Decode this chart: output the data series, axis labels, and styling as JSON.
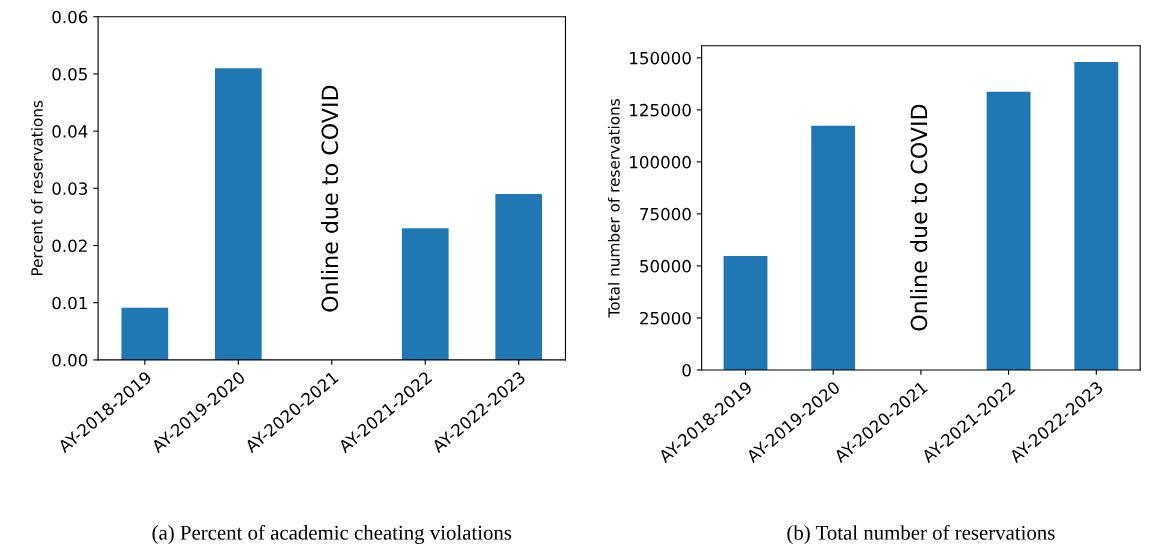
{
  "chart_data": [
    {
      "type": "bar",
      "ylabel": "Percent of reservations",
      "categories": [
        "AY-2018-2019",
        "AY-2019-2020",
        "AY-2020-2021",
        "AY-2021-2022",
        "AY-2022-2023"
      ],
      "values": [
        0.0091,
        0.051,
        null,
        0.023,
        0.029
      ],
      "color": "#1f77b4",
      "ylim": [
        0,
        0.06
      ],
      "yticks": [
        {
          "value": 0,
          "label": "0.00"
        },
        {
          "value": 0.01,
          "label": "0.01"
        },
        {
          "value": 0.02,
          "label": "0.02"
        },
        {
          "value": 0.03,
          "label": "0.03"
        },
        {
          "value": 0.04,
          "label": "0.04"
        },
        {
          "value": 0.05,
          "label": "0.05"
        },
        {
          "value": 0.06,
          "label": "0.06"
        }
      ],
      "grid": false,
      "legend": false,
      "annotations": [
        "Online due to COVID",
        "(a) Percent of academic cheating violations"
      ]
    },
    {
      "type": "bar",
      "ylabel": "Total number of reservations",
      "categories": [
        "AY-2018-2019",
        "AY-2019-2020",
        "AY-2020-2021",
        "AY-2021-2022",
        "AY-2022-2023"
      ],
      "values": [
        54800,
        117300,
        null,
        133700,
        148000
      ],
      "color": "#1f77b4",
      "ylim": [
        0,
        155800
      ],
      "yticks": [
        0,
        25000,
        50000,
        75000,
        100000,
        125000,
        150000
      ],
      "grid": false,
      "legend": false,
      "annotations": [
        "Online due to COVID",
        "(b) Total number of reservations"
      ]
    }
  ]
}
